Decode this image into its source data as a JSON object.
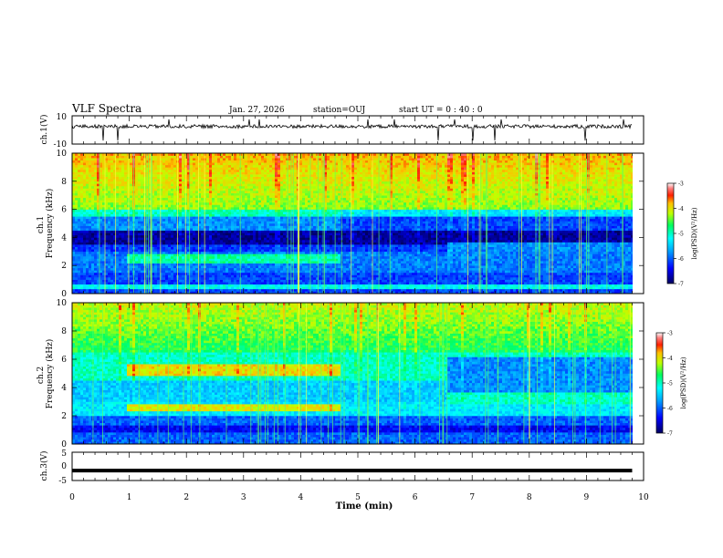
{
  "header": {
    "title": "VLF Spectra",
    "date": "Jan. 27, 2026",
    "station": "station=OUJ",
    "start_ut": "start UT =  0 : 40 : 0"
  },
  "chart_data": [
    {
      "type": "line",
      "name": "ch1-waveform",
      "ylabel": "ch.1(V)",
      "ylim": [
        -10,
        10
      ],
      "yticks": [
        "10",
        "-10"
      ],
      "baseline": 2.5,
      "xlim": [
        0,
        9.8
      ]
    },
    {
      "type": "heatmap",
      "name": "ch1-spectrogram",
      "ylabel": "ch.1\nFrequency (kHz)",
      "ylabel_lines": [
        "ch.1",
        "Frequency (kHz)"
      ],
      "ylim": [
        0,
        10
      ],
      "yticks": [
        "0",
        "2",
        "4",
        "6",
        "8",
        "10"
      ],
      "colorbar": {
        "label": "log(PSD)(V²/Hz)",
        "range": [
          -7,
          -3
        ],
        "ticks": [
          "-3",
          "-4",
          "-5",
          "-6",
          "-7"
        ]
      },
      "segments_min": [
        0,
        0.95,
        4.65,
        6.55,
        9.8
      ],
      "features": [
        {
          "desc": "strong band",
          "freq_khz": 2.5,
          "t_min": 0.95,
          "t_max": 4.65
        },
        {
          "desc": "quiet band",
          "freq_khz": 4.0,
          "t_min": 0,
          "t_max": 9.8
        }
      ]
    },
    {
      "type": "heatmap",
      "name": "ch2-spectrogram",
      "ylabel": "ch.2\nFrequency (kHz)",
      "ylabel_lines": [
        "ch.2",
        "Frequency (kHz)"
      ],
      "ylim": [
        0,
        10
      ],
      "yticks": [
        "0",
        "2",
        "4",
        "6",
        "8",
        "10"
      ],
      "colorbar": {
        "label": "log(PSD)(V²/Hz)",
        "range": [
          -7,
          -3
        ],
        "ticks": [
          "-3",
          "-4",
          "-5",
          "-6",
          "-7"
        ]
      },
      "segments_min": [
        0,
        0.95,
        4.65,
        6.55,
        9.8
      ],
      "features": [
        {
          "desc": "strong band",
          "freq_khz": 5.2,
          "t_min": 0.95,
          "t_max": 4.65
        },
        {
          "desc": "strong band",
          "freq_khz": 2.6,
          "t_min": 0.95,
          "t_max": 4.65
        }
      ]
    },
    {
      "type": "line",
      "name": "ch3-trace",
      "ylabel": "ch.3(V)",
      "ylim": [
        -5,
        5
      ],
      "yticks": [
        "5",
        "0",
        "-5"
      ],
      "value": -1.5,
      "xlim": [
        0,
        9.8
      ]
    }
  ],
  "xaxis": {
    "label": "Time (min)",
    "xlim": [
      0,
      10
    ],
    "ticks": [
      "0",
      "1",
      "2",
      "3",
      "4",
      "5",
      "6",
      "7",
      "8",
      "9",
      "10"
    ],
    "data_end_min": 9.8
  },
  "colors": {
    "colormap": [
      "#000080",
      "#0000ff",
      "#0080ff",
      "#00ffff",
      "#00ff80",
      "#80ff00",
      "#ffff00",
      "#ff8000",
      "#ff0000",
      "#ffffff"
    ]
  }
}
